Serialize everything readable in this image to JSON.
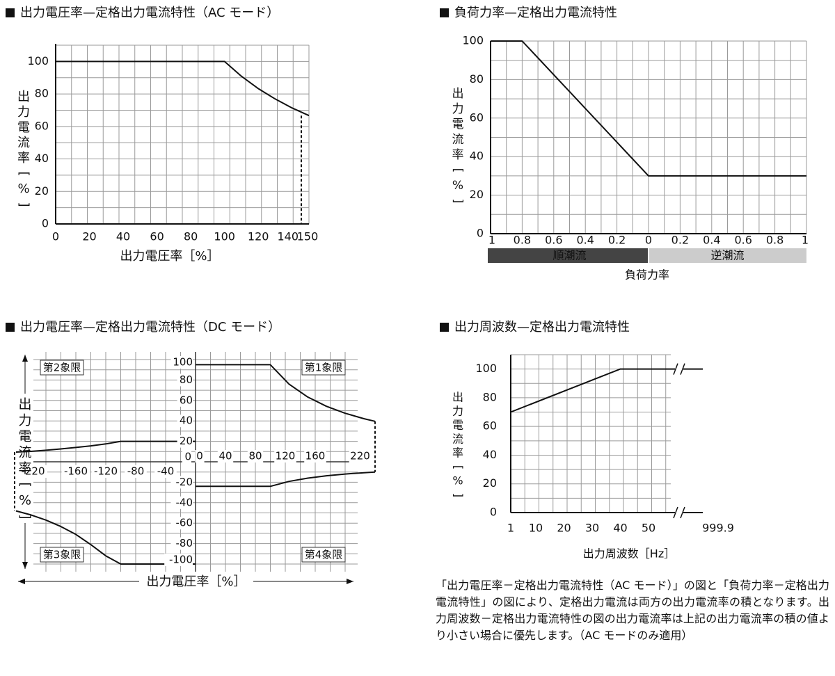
{
  "ac_voltage_chart": {
    "title": "出力電圧率—定格出力電流特性（AC モード）",
    "chart_data": {
      "type": "line",
      "xlabel": "出力電圧率［%］",
      "ylabel_chars": [
        "出",
        "力",
        "電",
        "流",
        "率",
        "[",
        "%",
        "]"
      ],
      "xlim": [
        0,
        150
      ],
      "ylim": [
        0,
        110
      ],
      "x_ticks": [
        0,
        20,
        40,
        60,
        80,
        100,
        120,
        140,
        150
      ],
      "x_tick_labels": [
        "0",
        "20",
        "40",
        "60",
        "80",
        "100",
        "120",
        "140",
        "150"
      ],
      "y_ticks": [
        0,
        20,
        40,
        60,
        80,
        100
      ],
      "y_tick_labels": [
        "0",
        "20",
        "40",
        "60",
        "80",
        "100"
      ],
      "series": [
        {
          "x": [
            0,
            100,
            110,
            120,
            130,
            140,
            150
          ],
          "y": [
            100,
            100,
            90.9,
            83.3,
            76.9,
            71.4,
            66.7
          ]
        }
      ],
      "dashed_drop": {
        "x": 150,
        "from_y": 66.7,
        "to_y": 0
      }
    }
  },
  "load_factor_chart": {
    "title": "負荷力率—定格出力電流特性",
    "chart_data": {
      "type": "line",
      "xlabel": "負荷力率",
      "ylabel_chars": [
        "出",
        "力",
        "電",
        "流",
        "率",
        "[",
        "%",
        "]"
      ],
      "ylim": [
        0,
        100
      ],
      "y_ticks": [
        0,
        20,
        40,
        60,
        80,
        100
      ],
      "y_tick_labels": [
        "0",
        "20",
        "40",
        "60",
        "80",
        "100"
      ],
      "x_ticks": [
        0,
        0.2,
        0.4,
        0.6,
        0.8,
        1.0,
        1.2,
        1.4,
        1.6,
        1.8,
        2.0
      ],
      "x_tick_labels": [
        "1",
        "0.8",
        "0.6",
        "0.4",
        "0.2",
        "0",
        "0.2",
        "0.4",
        "0.6",
        "0.8",
        "1"
      ],
      "series": [
        {
          "x": [
            0,
            0.2,
            1.0,
            2.0
          ],
          "y": [
            100,
            100,
            30,
            30
          ]
        }
      ],
      "bands": [
        {
          "label": "順潮流",
          "from": 0,
          "to": 1.0,
          "color": "#444444"
        },
        {
          "label": "逆潮流",
          "from": 1.0,
          "to": 2.0,
          "color": "#cccccc"
        }
      ]
    }
  },
  "dc_voltage_chart": {
    "title": "出力電圧率—定格出力電流特性（DC モード）",
    "chart_data": {
      "type": "line",
      "xlabel": "出力電圧率［%］",
      "ylabel_chars": [
        "出",
        "力",
        "電",
        "流",
        "率",
        "[",
        "%",
        "]"
      ],
      "xlim": [
        -250,
        250
      ],
      "ylim": [
        -100,
        100
      ],
      "x_pos_ticks": [
        0,
        40,
        80,
        120,
        160,
        220
      ],
      "x_pos_labels": [
        "0",
        "40",
        "80",
        "120",
        "160",
        "220"
      ],
      "x_neg_ticks": [
        -220,
        -160,
        -120,
        -80,
        -40
      ],
      "x_neg_labels": [
        "-220",
        "-160",
        "-120",
        "-80",
        "-40"
      ],
      "y_pos_ticks": [
        0,
        20,
        40,
        60,
        80,
        100
      ],
      "y_pos_labels": [
        "0",
        "20",
        "40",
        "60",
        "80",
        "100"
      ],
      "y_neg_ticks": [
        -20,
        -40,
        -60,
        -80,
        -100
      ],
      "y_neg_labels": [
        "-20",
        "-40",
        "-60",
        "-80",
        "-100"
      ],
      "quadrants": [
        "第1象限",
        "第2象限",
        "第3象限",
        "第4象限"
      ],
      "series": [
        {
          "name": "q1",
          "x": [
            0,
            100,
            125,
            150,
            175,
            200,
            225,
            240
          ],
          "y": [
            95,
            95,
            76,
            63.3,
            54.3,
            47.5,
            42.2,
            39.6
          ]
        },
        {
          "name": "q2",
          "x": [
            -240,
            -220,
            -200,
            -180,
            -160,
            -140,
            -120,
            -100,
            0
          ],
          "y": [
            9.5,
            10.2,
            11.3,
            12.6,
            14,
            15.6,
            17.5,
            20,
            20
          ]
        },
        {
          "name": "q3",
          "x": [
            -240,
            -220,
            -200,
            -180,
            -160,
            -140,
            -120,
            -100,
            0
          ],
          "y": [
            -48,
            -52,
            -57,
            -63.3,
            -71,
            -81,
            -92,
            -100,
            -100
          ]
        },
        {
          "name": "q4",
          "x": [
            0,
            100,
            125,
            150,
            175,
            200,
            225,
            240
          ],
          "y": [
            -24,
            -24,
            -19.2,
            -16,
            -13.7,
            -12,
            -10.7,
            -10
          ]
        }
      ],
      "dashed_drops": [
        {
          "x": -240,
          "from_y": 9.5,
          "to_y": -48
        },
        {
          "x": 240,
          "from_y": 39.6,
          "to_y": -10
        }
      ]
    }
  },
  "freq_chart": {
    "title": "出力周波数—定格出力電流特性",
    "chart_data": {
      "type": "line",
      "xlabel": "出力周波数［Hz］",
      "ylabel_chars": [
        "出",
        "力",
        "電",
        "流",
        "率",
        "[",
        "%",
        "]"
      ],
      "ylim": [
        0,
        100
      ],
      "y_ticks": [
        0,
        20,
        40,
        60,
        80,
        100
      ],
      "y_tick_labels": [
        "0",
        "20",
        "40",
        "60",
        "80",
        "100"
      ],
      "x_ticks": [
        1,
        10,
        20,
        30,
        40,
        50
      ],
      "x_tick_labels": [
        "1",
        "10",
        "20",
        "30",
        "40",
        "50"
      ],
      "x_end_label": "999.9",
      "series": [
        {
          "x": [
            1,
            40
          ],
          "y": [
            70,
            100
          ]
        }
      ],
      "flat_after": 100
    }
  },
  "note_text": "「出力電圧率－定格出力電流特性（AC モード）」の図と「負荷力率－定格出力電流特性」の図により、定格出力電流は両方の出力電流率の積となります。出力周波数－定格出力電流特性の図の出力電流率は上記の出力電流率の積の値より小さい場合に優先します。（AC モードのみ適用）"
}
